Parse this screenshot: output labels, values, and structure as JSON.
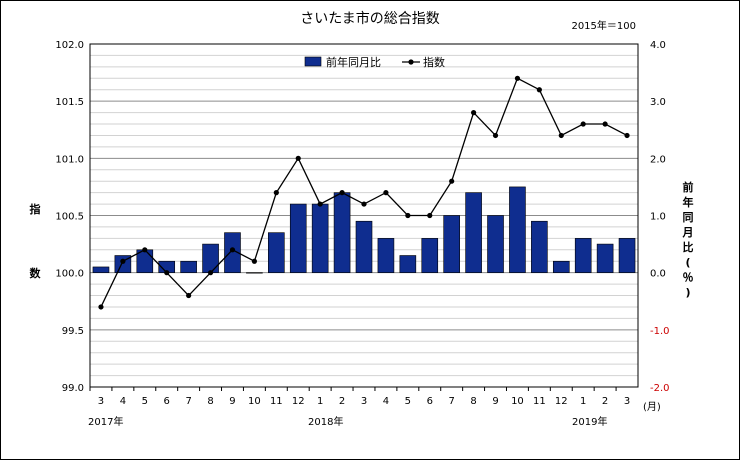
{
  "chart_data": {
    "type": "bar+line",
    "title": "さいたま市の総合指数",
    "base_note": "2015年＝100",
    "categories": [
      "3",
      "4",
      "5",
      "6",
      "7",
      "8",
      "9",
      "10",
      "11",
      "12",
      "1",
      "2",
      "3",
      "4",
      "5",
      "6",
      "7",
      "8",
      "9",
      "10",
      "11",
      "12",
      "1",
      "2",
      "3"
    ],
    "x_unit": "(月)",
    "year_labels": [
      "2017年",
      "2018年",
      "2019年"
    ],
    "series": [
      {
        "name": "前年同月比",
        "type": "bar",
        "axis": "right",
        "color": "#0f2d8f",
        "values": [
          0.1,
          0.3,
          0.4,
          0.2,
          0.2,
          0.5,
          0.7,
          0.0,
          0.7,
          1.2,
          1.2,
          1.4,
          0.9,
          0.6,
          0.3,
          0.6,
          1.0,
          1.4,
          1.0,
          1.5,
          0.9,
          0.2,
          0.6,
          0.5,
          0.6
        ]
      },
      {
        "name": "指数",
        "type": "line",
        "axis": "left",
        "color": "#000000",
        "values": [
          99.7,
          100.1,
          100.2,
          100.0,
          99.8,
          100.0,
          100.2,
          100.1,
          100.7,
          101.0,
          100.6,
          100.7,
          100.6,
          100.7,
          100.5,
          100.5,
          100.8,
          101.4,
          101.2,
          101.7,
          101.6,
          101.2,
          101.3,
          101.3,
          101.2
        ]
      }
    ],
    "ylabel_left": "指数",
    "ylabel_right": "前年同月比(％)",
    "ylim_left": [
      99.0,
      102.0
    ],
    "ylim_right": [
      -2.0,
      4.0
    ],
    "left_ticks": [
      "102.0",
      "101.5",
      "101.0",
      "100.5",
      "100.0",
      "99.5",
      "99.0"
    ],
    "right_ticks": [
      "4.0",
      "3.0",
      "2.0",
      "1.0",
      "0.0",
      "-1.0",
      "-2.0"
    ],
    "negative_tick_color": "#cc0000",
    "legend_position": "top-center",
    "grid": true
  }
}
